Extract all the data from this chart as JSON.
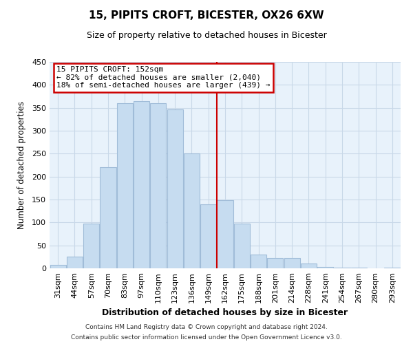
{
  "title": "15, PIPITS CROFT, BICESTER, OX26 6XW",
  "subtitle": "Size of property relative to detached houses in Bicester",
  "xlabel": "Distribution of detached houses by size in Bicester",
  "ylabel": "Number of detached properties",
  "bar_labels": [
    "31sqm",
    "44sqm",
    "57sqm",
    "70sqm",
    "83sqm",
    "97sqm",
    "110sqm",
    "123sqm",
    "136sqm",
    "149sqm",
    "162sqm",
    "175sqm",
    "188sqm",
    "201sqm",
    "214sqm",
    "228sqm",
    "241sqm",
    "254sqm",
    "267sqm",
    "280sqm",
    "293sqm"
  ],
  "bar_heights": [
    8,
    25,
    98,
    220,
    360,
    365,
    360,
    347,
    250,
    140,
    148,
    97,
    30,
    22,
    22,
    10,
    3,
    1,
    1,
    0,
    1
  ],
  "bar_color": "#c6dcf0",
  "bar_edgecolor": "#a0bcd8",
  "vline_x": 9.5,
  "vline_color": "#cc0000",
  "annotation_title": "15 PIPITS CROFT: 152sqm",
  "annotation_line1": "← 82% of detached houses are smaller (2,040)",
  "annotation_line2": "18% of semi-detached houses are larger (439) →",
  "annotation_box_edgecolor": "#cc0000",
  "annotation_box_facecolor": "#ffffff",
  "ylim": [
    0,
    450
  ],
  "yticks": [
    0,
    50,
    100,
    150,
    200,
    250,
    300,
    350,
    400,
    450
  ],
  "footer_line1": "Contains HM Land Registry data © Crown copyright and database right 2024.",
  "footer_line2": "Contains public sector information licensed under the Open Government Licence v3.0.",
  "background_color": "#ffffff",
  "axes_facecolor": "#e8f2fb",
  "grid_color": "#c8d8e8"
}
